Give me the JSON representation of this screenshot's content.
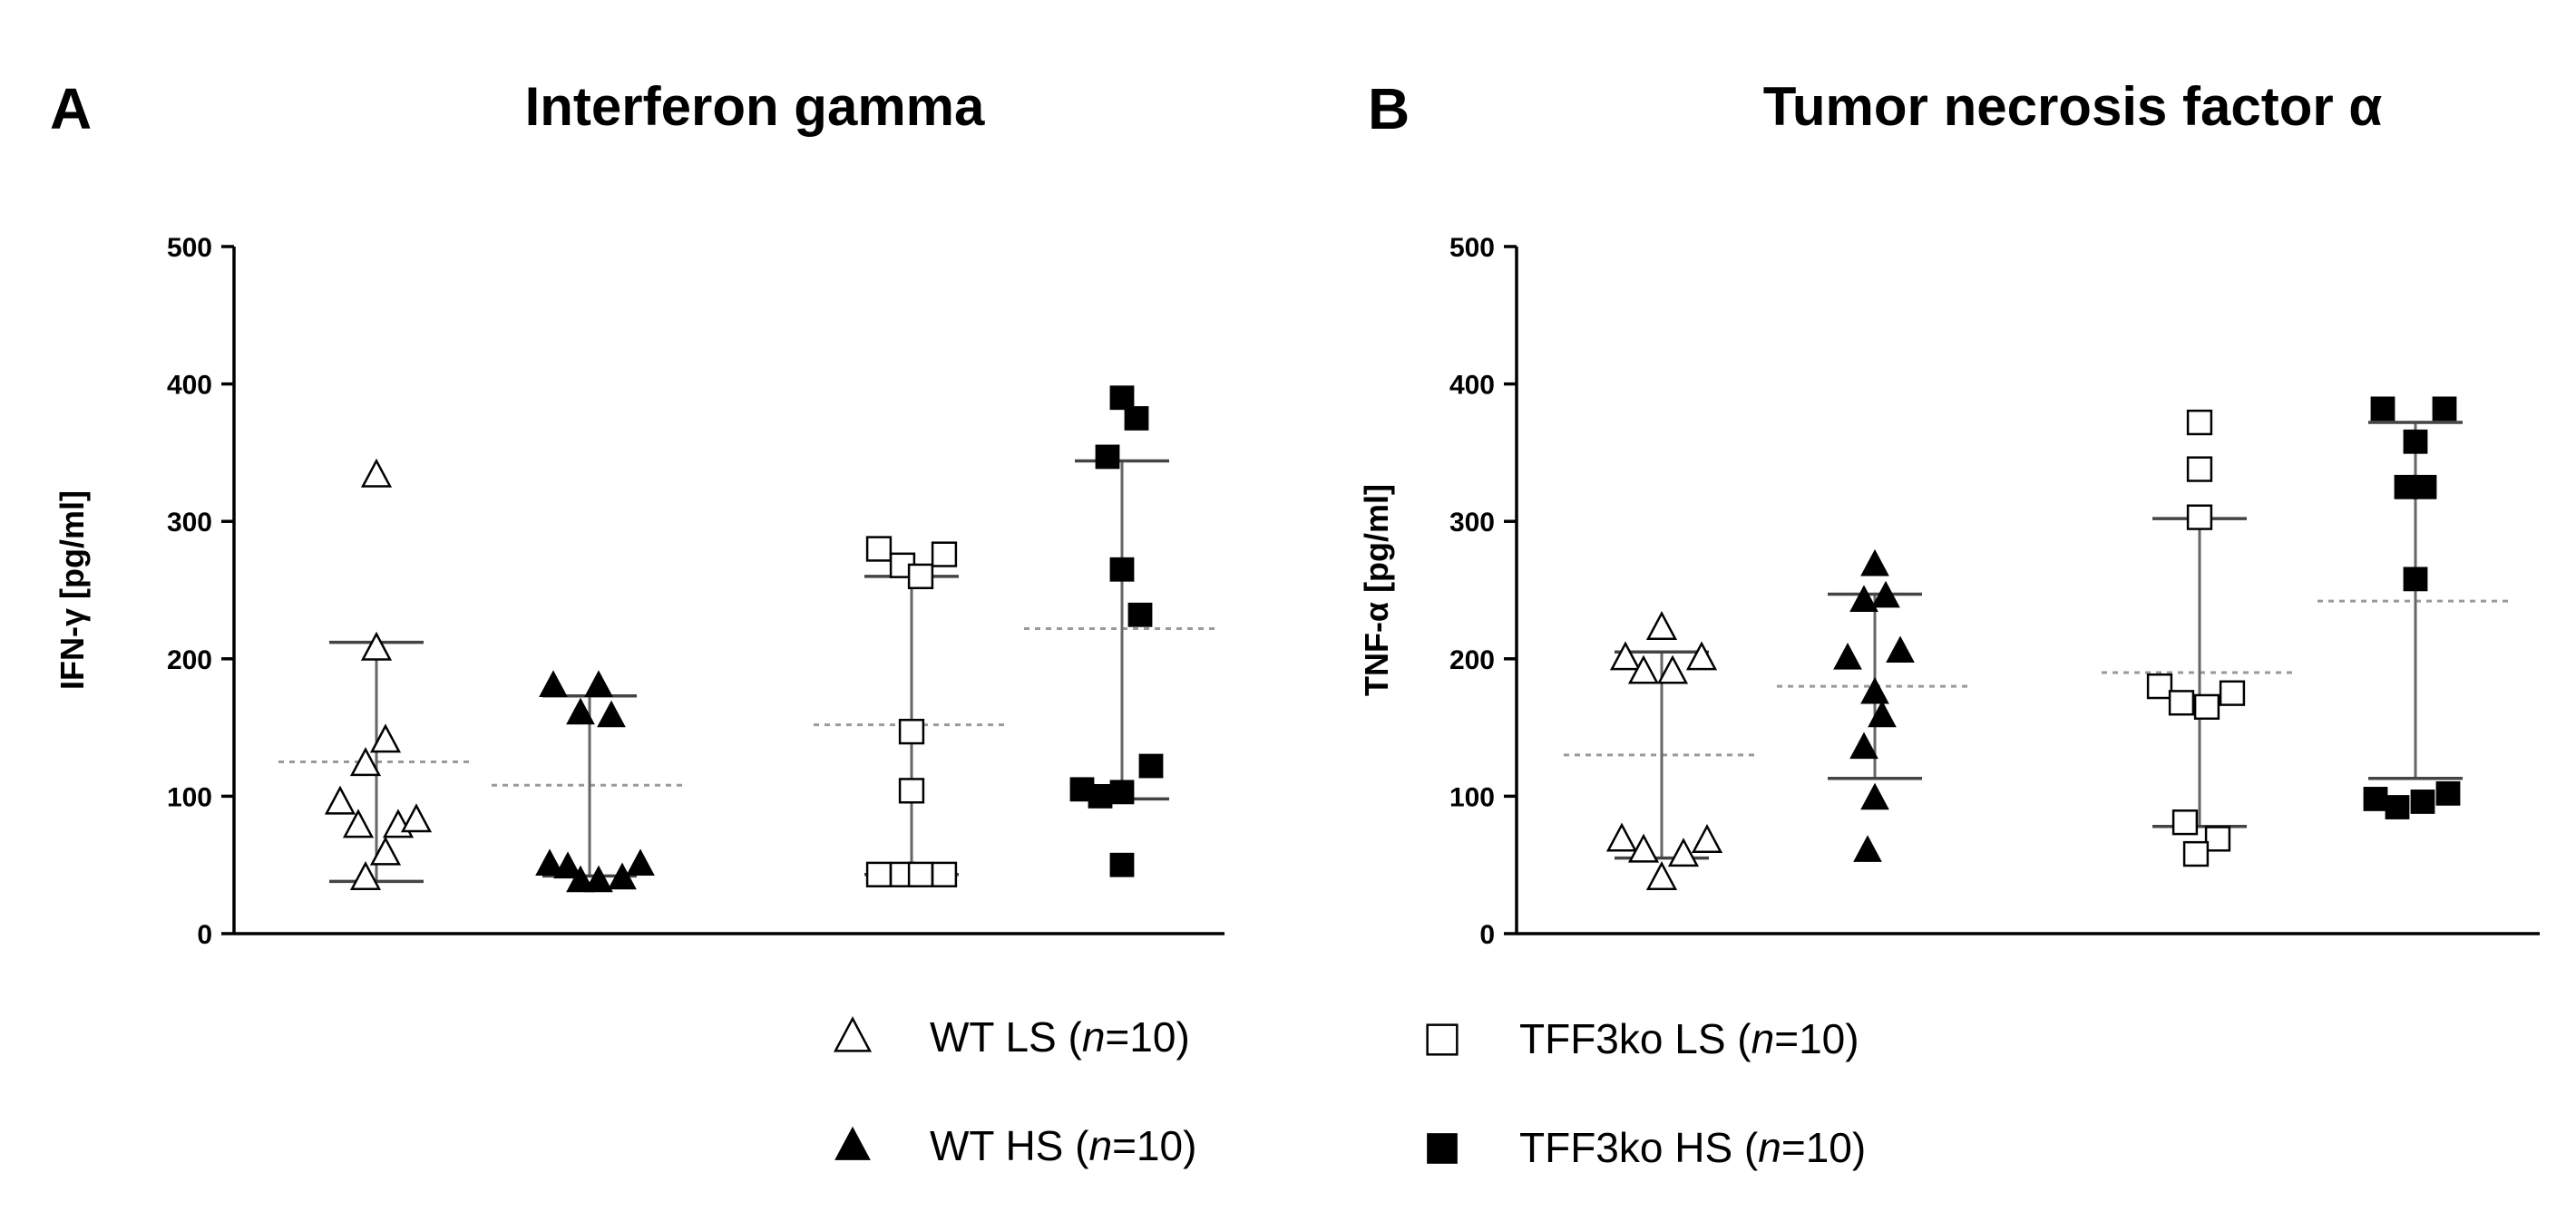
{
  "panel_a": {
    "letter": "A",
    "title": "Interferon gamma"
  },
  "panel_b": {
    "letter": "B",
    "title": "Tumor necrosis factor α"
  },
  "legend": {
    "items": [
      {
        "id": "wt_ls",
        "marker": "triangle-open-icon",
        "label": "WT LS",
        "n_text": "n",
        "n_suffix": "=10"
      },
      {
        "id": "wt_hs",
        "marker": "triangle-filled-icon",
        "label": "WT HS",
        "n_text": "n",
        "n_suffix": "=10"
      },
      {
        "id": "ko_ls",
        "marker": "square-open-icon",
        "label": "TFF3ko LS",
        "n_text": "n",
        "n_suffix": "=10"
      },
      {
        "id": "ko_hs",
        "marker": "square-filled-icon",
        "label": "TFF3ko HS",
        "n_text": "n",
        "n_suffix": "=10"
      }
    ]
  },
  "chart_data": [
    {
      "type": "scatter",
      "subtype": "dot-plot-with-median-and-range",
      "title": "Interferon gamma",
      "panel": "A",
      "ylabel": "IFN-γ [pg/ml]",
      "ylim": [
        0,
        500
      ],
      "yticks": [
        0,
        100,
        200,
        300,
        400,
        500
      ],
      "ytick_labels": [
        "0",
        "100",
        "200",
        "300",
        "400",
        "500"
      ],
      "series": [
        {
          "name": "WT LS (n=10)",
          "marker": "triangle-open",
          "mean": 125,
          "upper": 212,
          "lower": 38,
          "points": [
            [
              -0.2,
              95
            ],
            [
              -0.1,
              78
            ],
            [
              -0.06,
              40
            ],
            [
              -0.06,
              123
            ],
            [
              0.0,
              333
            ],
            [
              0.0,
              207
            ],
            [
              0.05,
              58
            ],
            [
              0.05,
              140
            ],
            [
              0.12,
              78
            ],
            [
              0.22,
              82
            ]
          ]
        },
        {
          "name": "WT HS (n=10)",
          "marker": "triangle-filled",
          "mean": 108,
          "upper": 173,
          "lower": 42,
          "points": [
            [
              -0.2,
              180
            ],
            [
              -0.22,
              50
            ],
            [
              -0.12,
              48
            ],
            [
              -0.05,
              38
            ],
            [
              -0.05,
              160
            ],
            [
              0.05,
              180
            ],
            [
              0.05,
              38
            ],
            [
              0.12,
              158
            ],
            [
              0.18,
              40
            ],
            [
              0.28,
              50
            ]
          ]
        },
        {
          "name": "TFF3ko LS (n=10)",
          "marker": "square-open",
          "mean": 152,
          "upper": 260,
          "lower": 43,
          "points": [
            [
              -0.18,
              280
            ],
            [
              -0.18,
              43
            ],
            [
              -0.05,
              268
            ],
            [
              -0.05,
              43
            ],
            [
              0.0,
              147
            ],
            [
              0.0,
              104
            ],
            [
              0.05,
              260
            ],
            [
              0.05,
              43
            ],
            [
              0.18,
              276
            ],
            [
              0.18,
              43
            ]
          ]
        },
        {
          "name": "TFF3ko HS (n=10)",
          "marker": "square-filled",
          "mean": 222,
          "upper": 344,
          "lower": 98,
          "points": [
            [
              -0.22,
              105
            ],
            [
              -0.08,
              347
            ],
            [
              -0.12,
              100
            ],
            [
              0.0,
              390
            ],
            [
              0.0,
              265
            ],
            [
              0.0,
              103
            ],
            [
              0.0,
              50
            ],
            [
              0.08,
              375
            ],
            [
              0.1,
              232
            ],
            [
              0.16,
              122
            ]
          ]
        }
      ]
    },
    {
      "type": "scatter",
      "subtype": "dot-plot-with-median-and-range",
      "title": "Tumor necrosis factor α",
      "panel": "B",
      "ylabel": "TNF-α [pg/ml]",
      "ylim": [
        0,
        500
      ],
      "yticks": [
        0,
        100,
        200,
        300,
        400,
        500
      ],
      "ytick_labels": [
        "0",
        "100",
        "200",
        "300",
        "400",
        "500"
      ],
      "series": [
        {
          "name": "WT LS (n=10)",
          "marker": "triangle-open",
          "mean": 130,
          "upper": 205,
          "lower": 55,
          "points": [
            [
              -0.2,
              200
            ],
            [
              -0.1,
              190
            ],
            [
              0.0,
              222
            ],
            [
              0.06,
              190
            ],
            [
              0.22,
              200
            ],
            [
              -0.22,
              68
            ],
            [
              -0.1,
              60
            ],
            [
              0.0,
              40
            ],
            [
              0.12,
              57
            ],
            [
              0.25,
              67
            ]
          ]
        },
        {
          "name": "WT HS (n=10)",
          "marker": "triangle-filled",
          "mean": 180,
          "upper": 247,
          "lower": 113,
          "points": [
            [
              -0.15,
              200
            ],
            [
              -0.06,
              242
            ],
            [
              0.0,
              268
            ],
            [
              0.06,
              245
            ],
            [
              0.14,
              205
            ],
            [
              0.0,
              175
            ],
            [
              0.04,
              158
            ],
            [
              -0.06,
              135
            ],
            [
              0.0,
              98
            ],
            [
              -0.04,
              60
            ]
          ]
        },
        {
          "name": "TFF3ko LS (n=10)",
          "marker": "square-open",
          "mean": 190,
          "upper": 302,
          "lower": 78,
          "points": [
            [
              0.0,
              372
            ],
            [
              0.0,
              338
            ],
            [
              0.0,
              303
            ],
            [
              -0.22,
              180
            ],
            [
              -0.1,
              168
            ],
            [
              0.04,
              165
            ],
            [
              0.18,
              175
            ],
            [
              -0.08,
              81
            ],
            [
              0.1,
              69
            ],
            [
              -0.02,
              58
            ]
          ]
        },
        {
          "name": "TFF3ko HS (n=10)",
          "marker": "square-filled",
          "mean": 242,
          "upper": 372,
          "lower": 113,
          "points": [
            [
              -0.18,
              382
            ],
            [
              0.16,
              382
            ],
            [
              0.0,
              358
            ],
            [
              -0.05,
              325
            ],
            [
              0.05,
              325
            ],
            [
              0.0,
              258
            ],
            [
              -0.22,
              98
            ],
            [
              -0.1,
              92
            ],
            [
              0.04,
              96
            ],
            [
              0.18,
              102
            ]
          ]
        }
      ]
    }
  ]
}
